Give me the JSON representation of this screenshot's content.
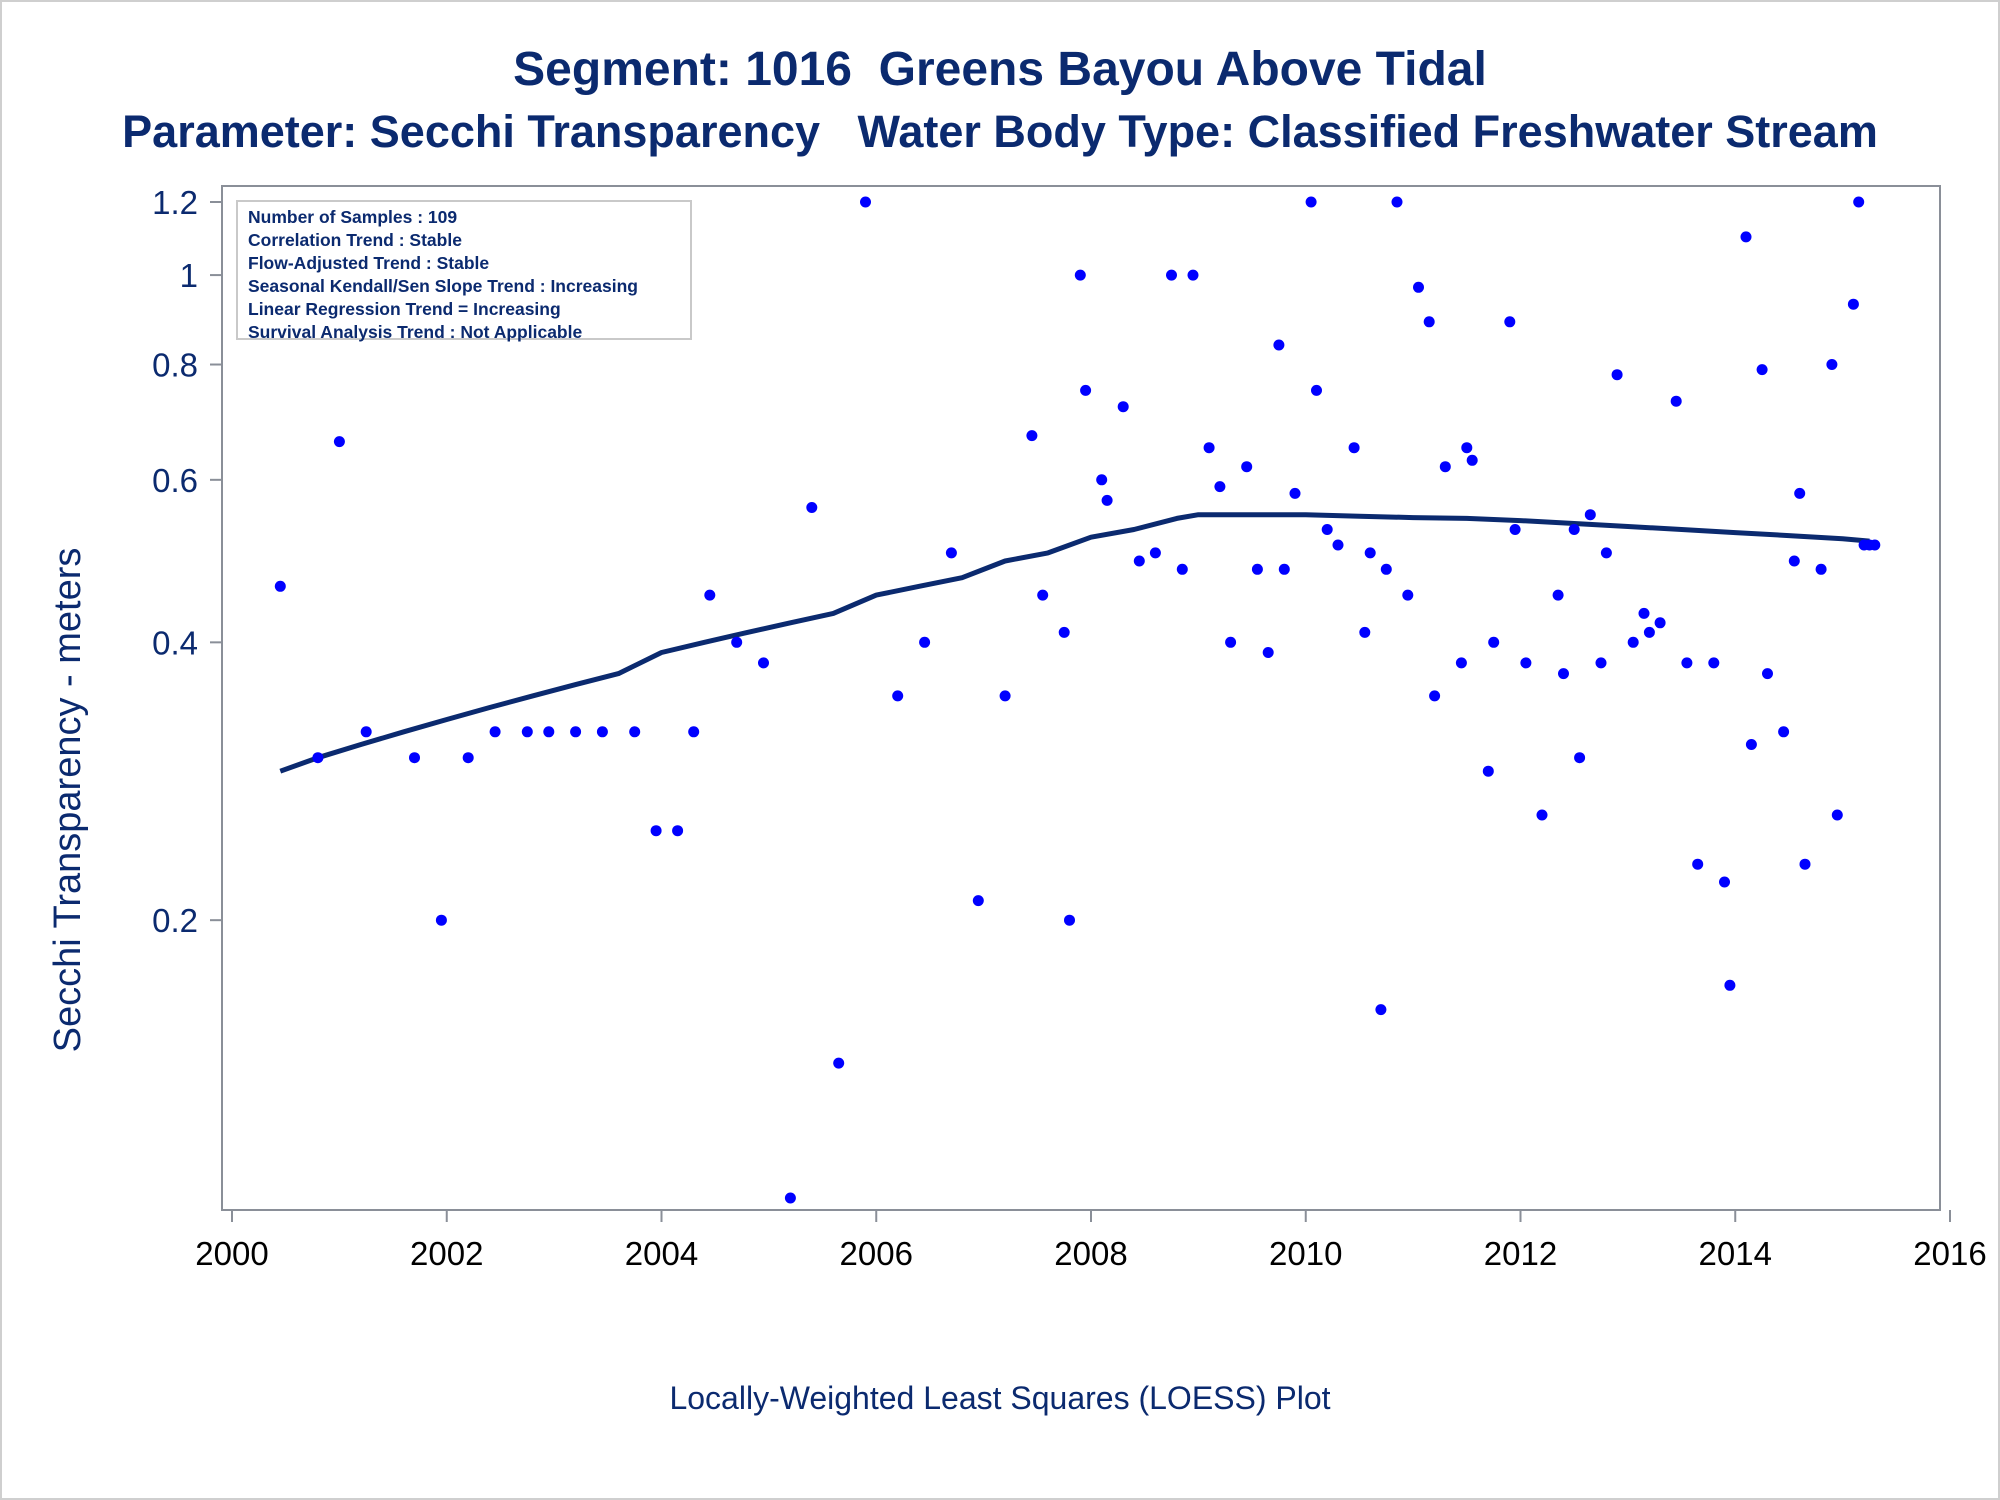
{
  "chart_data": {
    "type": "scatter",
    "title": "Segment: 1016  Greens Bayou Above Tidal",
    "subtitle": "Parameter: Secchi Transparency   Water Body Type: Classified Freshwater Stream",
    "ylabel": "Secchi Transparency - meters",
    "footnote": "Locally-Weighted Least Squares (LOESS) Plot",
    "yscale": "log",
    "xlim": [
      2000,
      2016
    ],
    "ylim": [
      0.1,
      1.2
    ],
    "xticks": [
      "2000",
      "2002",
      "2004",
      "2006",
      "2008",
      "2010",
      "2012",
      "2014",
      "2016"
    ],
    "yticks": [
      "0.2",
      "0.4",
      "0.6",
      "0.8",
      "1",
      "1.2"
    ],
    "grid": false,
    "legend_placement": "top-left",
    "colors": {
      "points": "#0000ff",
      "loess": "#0b2a6f",
      "text": "#0b2a6f",
      "axis": "#8a8f98"
    },
    "annotations": [
      "Number of Samples : 109",
      "Correlation Trend : Stable",
      "Flow-Adjusted Trend : Stable",
      "Seasonal Kendall/Sen Slope Trend : Increasing",
      "Linear Regression Trend = Increasing",
      "Survival Analysis Trend : Not Applicable"
    ],
    "series": [
      {
        "type": "scatter",
        "points": [
          [
            2000.45,
            0.46
          ],
          [
            2000.8,
            0.3
          ],
          [
            2001.0,
            0.66
          ],
          [
            2001.25,
            0.32
          ],
          [
            2001.7,
            0.3
          ],
          [
            2001.95,
            0.2
          ],
          [
            2002.2,
            0.3
          ],
          [
            2002.45,
            0.32
          ],
          [
            2002.75,
            0.32
          ],
          [
            2002.95,
            0.32
          ],
          [
            2003.2,
            0.32
          ],
          [
            2003.45,
            0.32
          ],
          [
            2003.75,
            0.32
          ],
          [
            2003.95,
            0.25
          ],
          [
            2004.15,
            0.25
          ],
          [
            2004.3,
            0.32
          ],
          [
            2004.45,
            0.45
          ],
          [
            2004.7,
            0.4
          ],
          [
            2004.95,
            0.38
          ],
          [
            2005.2,
            0.1
          ],
          [
            2005.4,
            0.56
          ],
          [
            2005.65,
            0.14
          ],
          [
            2005.9,
            1.2
          ],
          [
            2006.2,
            0.35
          ],
          [
            2006.45,
            0.4
          ],
          [
            2006.7,
            0.5
          ],
          [
            2006.95,
            0.21
          ],
          [
            2007.2,
            0.35
          ],
          [
            2007.45,
            0.67
          ],
          [
            2007.55,
            0.45
          ],
          [
            2007.75,
            0.41
          ],
          [
            2007.8,
            0.2
          ],
          [
            2007.9,
            1.0
          ],
          [
            2007.95,
            0.75
          ],
          [
            2008.1,
            0.6
          ],
          [
            2008.15,
            0.57
          ],
          [
            2008.3,
            0.72
          ],
          [
            2008.45,
            0.49
          ],
          [
            2008.6,
            0.5
          ],
          [
            2008.75,
            1.0
          ],
          [
            2008.85,
            0.48
          ],
          [
            2008.95,
            1.0
          ],
          [
            2009.1,
            0.65
          ],
          [
            2009.2,
            0.59
          ],
          [
            2009.3,
            0.4
          ],
          [
            2009.45,
            0.62
          ],
          [
            2009.55,
            0.48
          ],
          [
            2009.65,
            0.39
          ],
          [
            2009.75,
            0.84
          ],
          [
            2009.8,
            0.48
          ],
          [
            2009.9,
            0.58
          ],
          [
            2010.05,
            1.2
          ],
          [
            2010.1,
            0.75
          ],
          [
            2010.2,
            0.53
          ],
          [
            2010.3,
            0.51
          ],
          [
            2010.45,
            0.65
          ],
          [
            2010.55,
            0.41
          ],
          [
            2010.6,
            0.5
          ],
          [
            2010.7,
            0.16
          ],
          [
            2010.75,
            0.48
          ],
          [
            2010.85,
            1.2
          ],
          [
            2010.95,
            0.45
          ],
          [
            2011.05,
            0.97
          ],
          [
            2011.15,
            0.89
          ],
          [
            2011.2,
            0.35
          ],
          [
            2011.3,
            0.62
          ],
          [
            2011.45,
            0.38
          ],
          [
            2011.5,
            0.65
          ],
          [
            2011.55,
            0.63
          ],
          [
            2011.7,
            0.29
          ],
          [
            2011.75,
            0.4
          ],
          [
            2011.9,
            0.89
          ],
          [
            2011.95,
            0.53
          ],
          [
            2012.05,
            0.38
          ],
          [
            2012.2,
            0.26
          ],
          [
            2012.35,
            0.45
          ],
          [
            2012.4,
            0.37
          ],
          [
            2012.5,
            0.53
          ],
          [
            2012.55,
            0.3
          ],
          [
            2012.65,
            0.55
          ],
          [
            2012.75,
            0.38
          ],
          [
            2012.8,
            0.5
          ],
          [
            2012.9,
            0.78
          ],
          [
            2013.05,
            0.4
          ],
          [
            2013.15,
            0.43
          ],
          [
            2013.2,
            0.41
          ],
          [
            2013.3,
            0.42
          ],
          [
            2013.45,
            0.73
          ],
          [
            2013.55,
            0.38
          ],
          [
            2013.65,
            0.23
          ],
          [
            2013.8,
            0.38
          ],
          [
            2013.9,
            0.22
          ],
          [
            2013.95,
            0.17
          ],
          [
            2014.1,
            1.1
          ],
          [
            2014.15,
            0.31
          ],
          [
            2014.25,
            0.79
          ],
          [
            2014.3,
            0.37
          ],
          [
            2014.45,
            0.32
          ],
          [
            2014.55,
            0.49
          ],
          [
            2014.6,
            0.58
          ],
          [
            2014.65,
            0.23
          ],
          [
            2014.8,
            0.48
          ],
          [
            2014.9,
            0.8
          ],
          [
            2014.95,
            0.26
          ],
          [
            2015.1,
            0.93
          ],
          [
            2015.15,
            1.2
          ],
          [
            2015.2,
            0.51
          ],
          [
            2015.25,
            0.51
          ],
          [
            2015.3,
            0.51
          ]
        ]
      },
      {
        "type": "line",
        "points": [
          [
            2000.45,
            0.29
          ],
          [
            2000.8,
            0.3
          ],
          [
            2001.2,
            0.31
          ],
          [
            2001.6,
            0.32
          ],
          [
            2002.0,
            0.33
          ],
          [
            2002.4,
            0.34
          ],
          [
            2002.8,
            0.35
          ],
          [
            2003.2,
            0.36
          ],
          [
            2003.6,
            0.37
          ],
          [
            2004.0,
            0.39
          ],
          [
            2004.4,
            0.4
          ],
          [
            2004.8,
            0.41
          ],
          [
            2005.2,
            0.42
          ],
          [
            2005.6,
            0.43
          ],
          [
            2006.0,
            0.45
          ],
          [
            2006.4,
            0.46
          ],
          [
            2006.8,
            0.47
          ],
          [
            2007.2,
            0.49
          ],
          [
            2007.6,
            0.5
          ],
          [
            2008.0,
            0.52
          ],
          [
            2008.4,
            0.53
          ],
          [
            2008.8,
            0.545
          ],
          [
            2009.0,
            0.55
          ],
          [
            2009.5,
            0.55
          ],
          [
            2010.0,
            0.55
          ],
          [
            2010.5,
            0.548
          ],
          [
            2011.0,
            0.546
          ],
          [
            2011.5,
            0.545
          ],
          [
            2012.0,
            0.542
          ],
          [
            2012.5,
            0.538
          ],
          [
            2013.0,
            0.534
          ],
          [
            2013.5,
            0.53
          ],
          [
            2014.0,
            0.526
          ],
          [
            2014.5,
            0.522
          ],
          [
            2015.0,
            0.518
          ],
          [
            2015.25,
            0.515
          ]
        ]
      }
    ]
  }
}
